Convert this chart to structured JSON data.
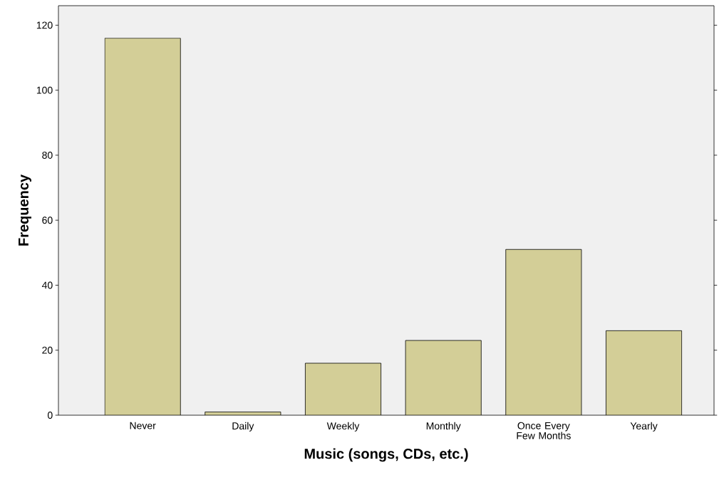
{
  "chart_data": {
    "type": "bar",
    "xlabel": "Music (songs, CDs, etc.)",
    "ylabel": "Frequency",
    "categories": [
      "Never",
      "Daily",
      "Weekly",
      "Monthly",
      "Once Every Few Months",
      "Yearly"
    ],
    "values": [
      116,
      1,
      16,
      23,
      51,
      26
    ],
    "color": "#d3ce97",
    "ylim": [
      0,
      126
    ],
    "yticks": [
      0,
      20,
      40,
      60,
      80,
      100,
      120
    ]
  }
}
